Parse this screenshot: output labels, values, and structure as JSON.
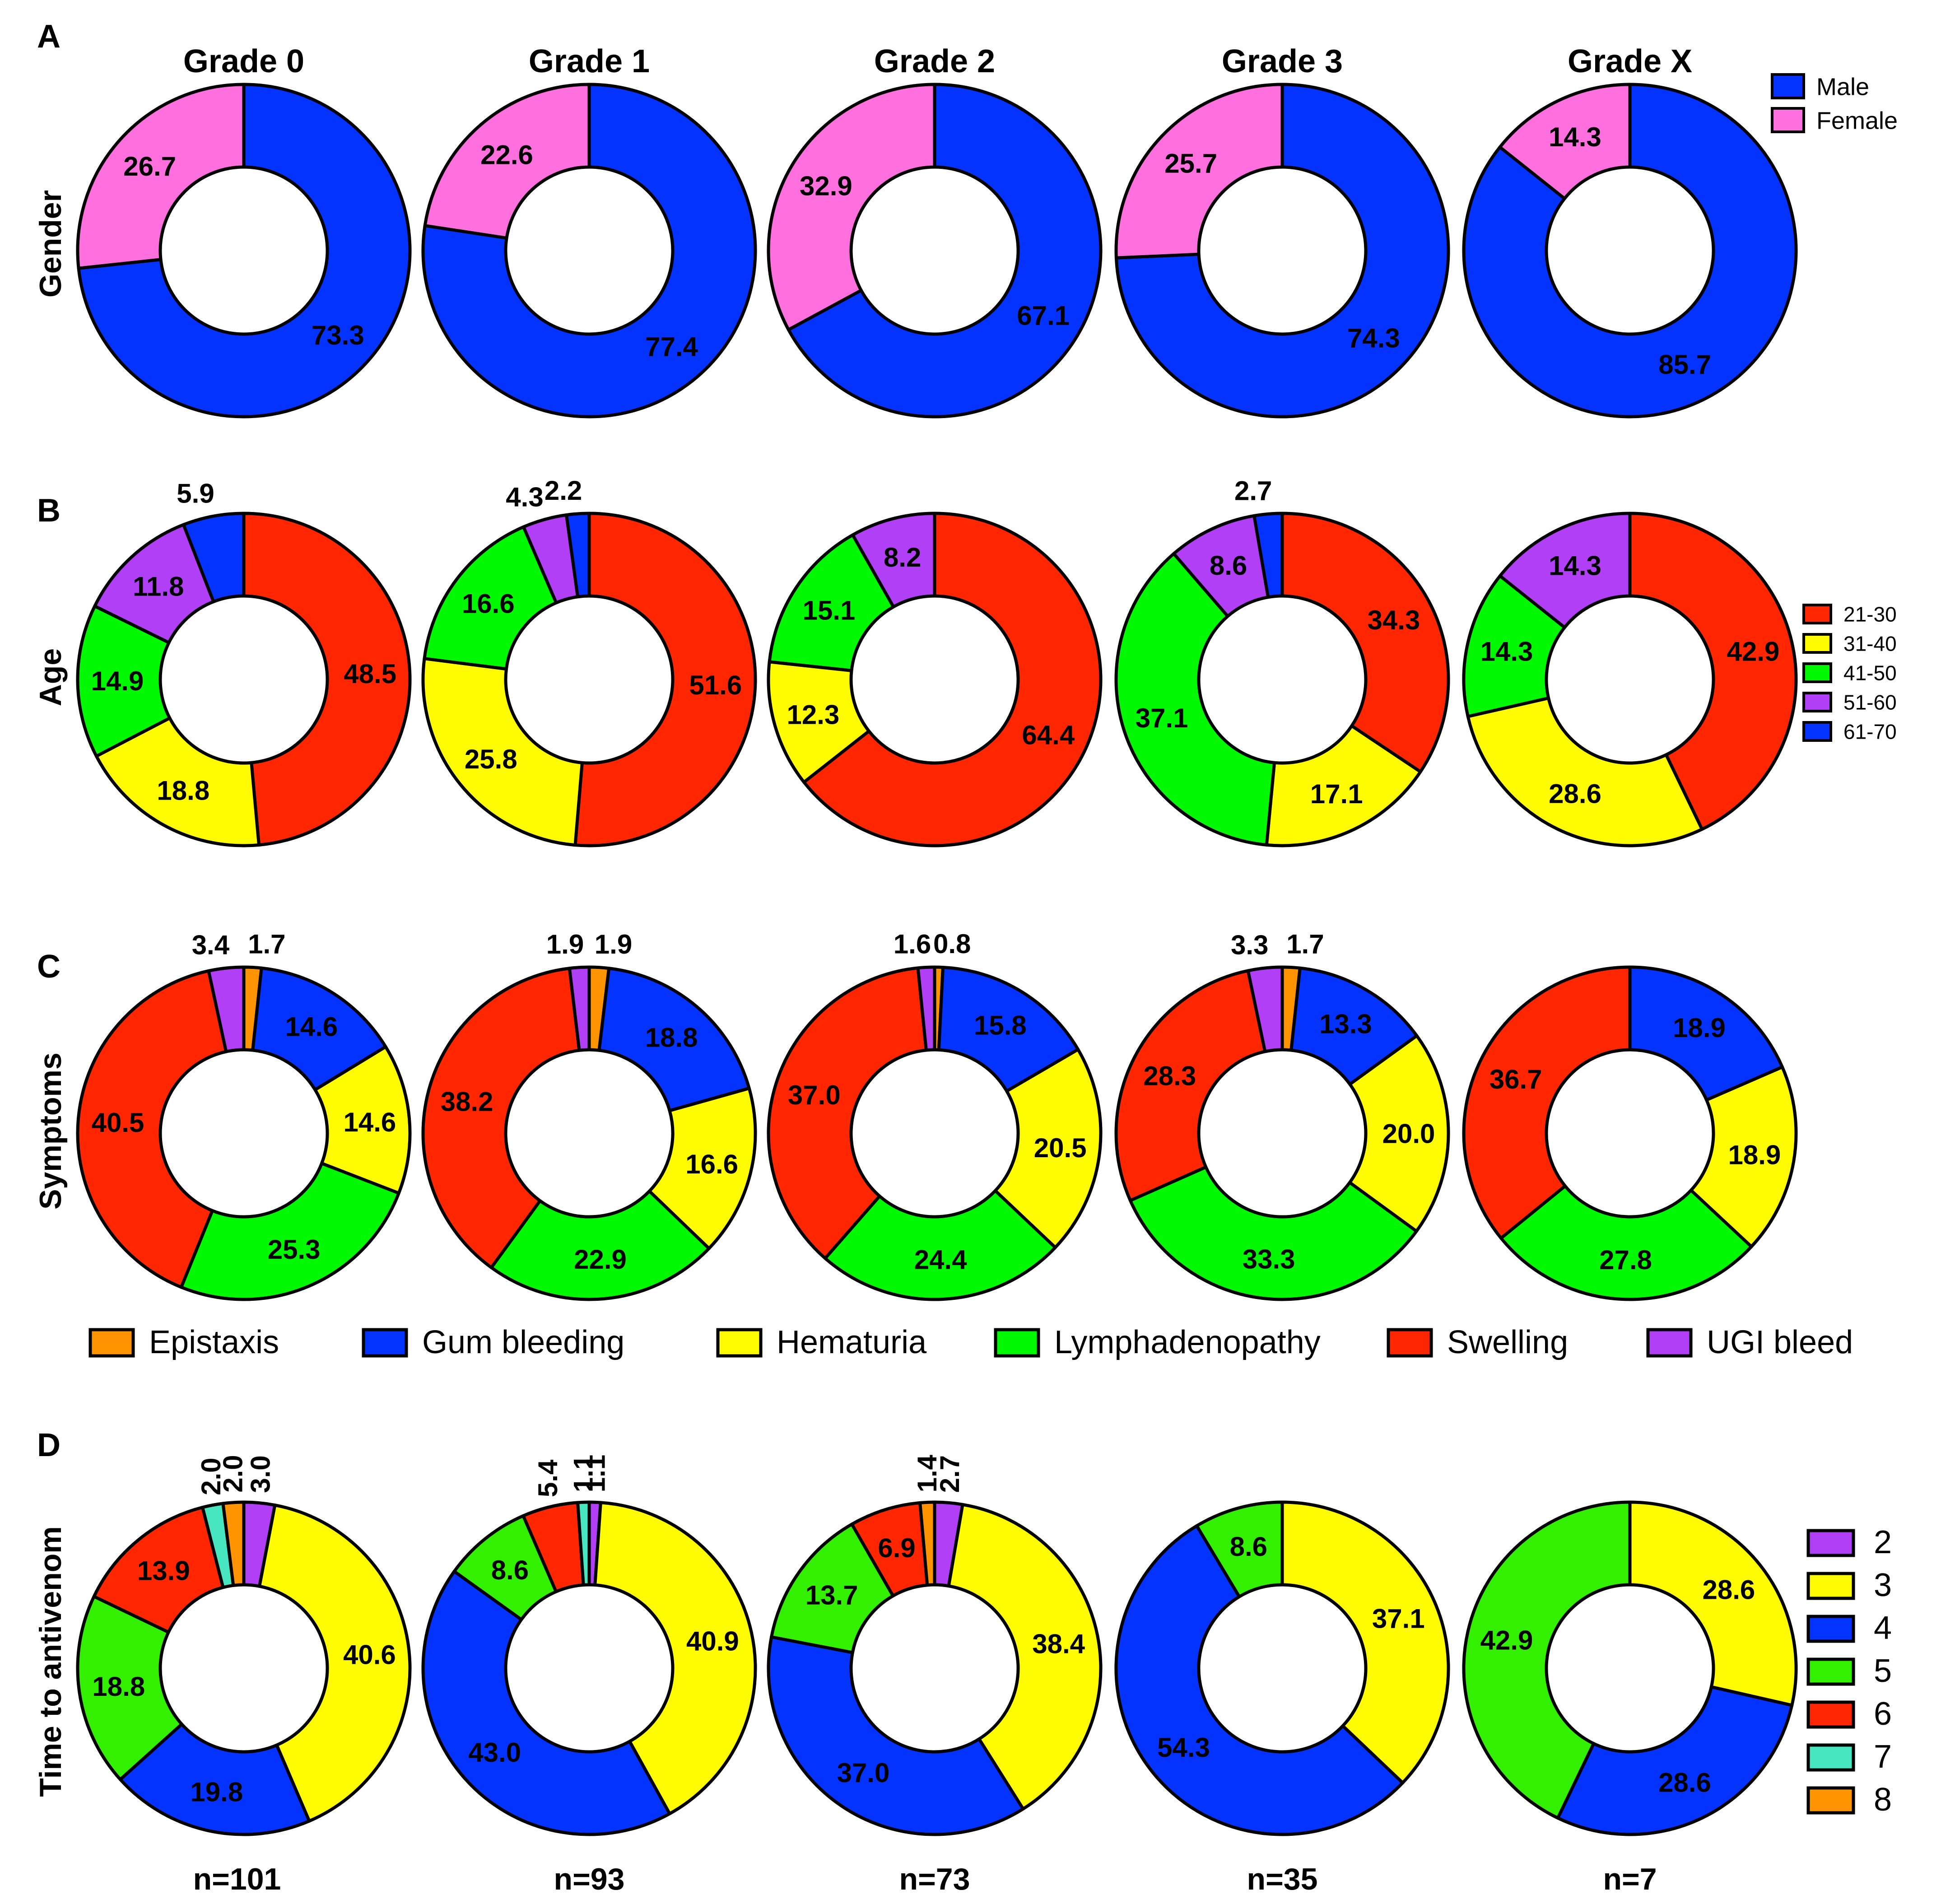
{
  "panel_letters": [
    "A",
    "B",
    "C",
    "D"
  ],
  "column_titles": [
    "Grade 0",
    "Grade 1",
    "Grade 2",
    "Grade 3",
    "Grade X"
  ],
  "sample_sizes": [
    "n=101",
    "n=93",
    "n=73",
    "n=35",
    "n=7"
  ],
  "chart_data": [
    {
      "type": "pie",
      "panel": "A",
      "ylabel": "Gender",
      "categories": [
        "Male",
        "Female"
      ],
      "colors": [
        "#0433ff",
        "#ff6fdd"
      ],
      "charts": [
        {
          "title": "Grade 0",
          "values": [
            73.3,
            26.7
          ]
        },
        {
          "title": "Grade 1",
          "values": [
            77.4,
            22.6
          ]
        },
        {
          "title": "Grade 2",
          "values": [
            67.1,
            32.9
          ]
        },
        {
          "title": "Grade 3",
          "values": [
            74.3,
            25.7
          ]
        },
        {
          "title": "Grade X",
          "values": [
            85.7,
            14.3
          ]
        }
      ]
    },
    {
      "type": "pie",
      "panel": "B",
      "ylabel": "Age",
      "categories": [
        "21-30",
        "31-40",
        "41-50",
        "51-60",
        "61-70"
      ],
      "colors": [
        "#ff2600",
        "#fffb00",
        "#00f900",
        "#b13ff5",
        "#0433ff"
      ],
      "charts": [
        {
          "title": "Grade 0",
          "values": [
            48.5,
            18.8,
            14.9,
            11.8,
            5.9
          ]
        },
        {
          "title": "Grade 1",
          "values": [
            51.6,
            25.8,
            16.6,
            4.3,
            2.2
          ]
        },
        {
          "title": "Grade 2",
          "values": [
            64.4,
            12.3,
            15.1,
            8.2,
            0
          ]
        },
        {
          "title": "Grade 3",
          "values": [
            34.3,
            17.1,
            37.1,
            8.6,
            2.7
          ]
        },
        {
          "title": "Grade X",
          "values": [
            42.9,
            28.6,
            14.3,
            14.3,
            0
          ]
        }
      ]
    },
    {
      "type": "pie",
      "panel": "C",
      "ylabel": "Symptoms",
      "categories": [
        "Epistaxis",
        "Gum bleeding",
        "Hematuria",
        "Lymphadenopathy",
        "Swelling",
        "UGI bleed"
      ],
      "colors": [
        "#ff9300",
        "#0433ff",
        "#fffb00",
        "#00f900",
        "#ff2600",
        "#b13ff5"
      ],
      "charts": [
        {
          "title": "Grade 0",
          "values": [
            1.7,
            14.6,
            14.6,
            25.3,
            40.5,
            3.4
          ]
        },
        {
          "title": "Grade 1",
          "values": [
            1.9,
            18.8,
            16.6,
            22.9,
            38.2,
            1.9
          ]
        },
        {
          "title": "Grade 2",
          "values": [
            0.8,
            15.8,
            20.5,
            24.4,
            37.0,
            1.6
          ]
        },
        {
          "title": "Grade 3",
          "values": [
            1.7,
            13.3,
            20.0,
            33.3,
            28.3,
            3.3
          ]
        },
        {
          "title": "Grade X",
          "values": [
            0,
            18.9,
            18.9,
            27.8,
            36.7,
            0
          ]
        }
      ]
    },
    {
      "type": "pie",
      "panel": "D",
      "ylabel": "Time to antivenom",
      "categories": [
        "2",
        "3",
        "4",
        "5",
        "6",
        "7",
        "8"
      ],
      "colors": [
        "#b13ff5",
        "#fffb00",
        "#0433ff",
        "#32f000",
        "#ff2600",
        "#48e6c0",
        "#ff9300"
      ],
      "charts": [
        {
          "title": "n=101",
          "values": [
            3.0,
            40.6,
            19.8,
            18.8,
            13.9,
            2.0,
            2.0
          ]
        },
        {
          "title": "n=93",
          "values": [
            1.1,
            40.9,
            43.0,
            8.6,
            5.4,
            1.1,
            0
          ]
        },
        {
          "title": "n=73",
          "values": [
            2.7,
            38.4,
            37.0,
            13.7,
            6.9,
            0,
            1.4
          ]
        },
        {
          "title": "n=35",
          "values": [
            0,
            37.1,
            54.3,
            8.6,
            0,
            0,
            0
          ]
        },
        {
          "title": "n=7",
          "values": [
            0,
            28.6,
            28.6,
            42.9,
            0,
            0,
            0
          ]
        }
      ]
    }
  ]
}
